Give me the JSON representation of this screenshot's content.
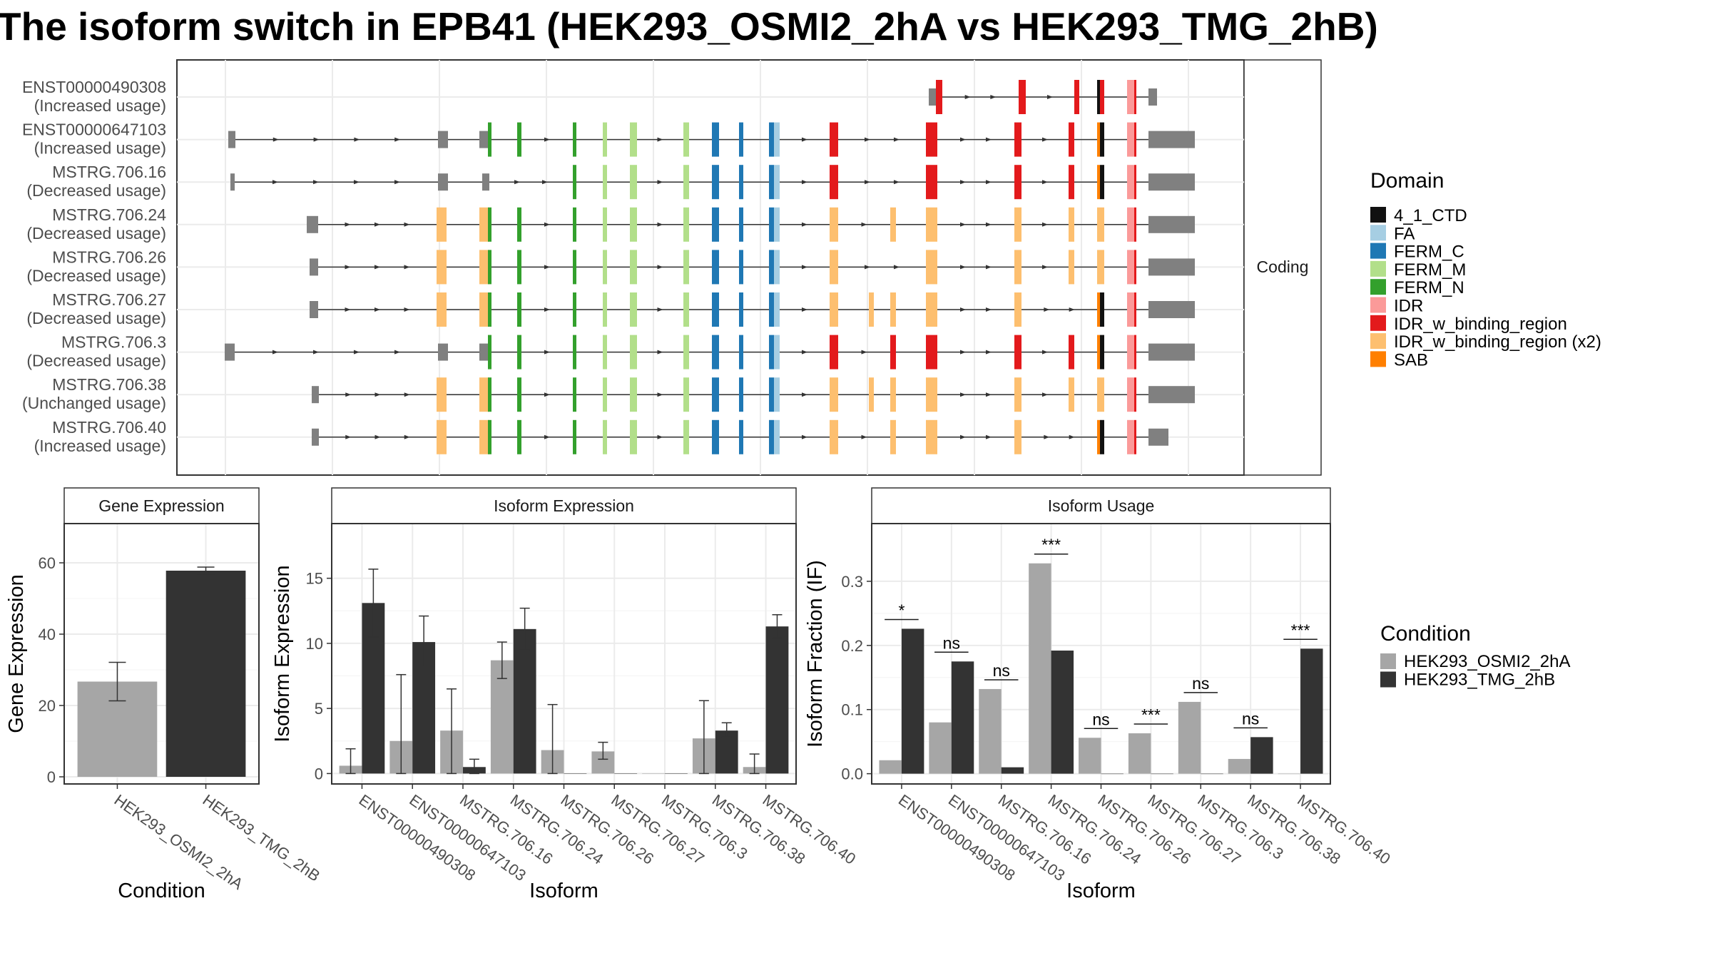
{
  "title": "The isoform switch in EPB41 (HEK293_OSMI2_2hA vs HEK293_TMG_2hB)",
  "colors": {
    "domain": {
      "4_1_CTD": "#111111",
      "FA": "#a6cee3",
      "FERM_C": "#1f78b4",
      "FERM_M": "#b2df8a",
      "FERM_N": "#33a02c",
      "IDR": "#fb9a99",
      "IDR_w_binding_region": "#e31a1c",
      "IDR_w_binding_region (x2)": "#fdbf6f",
      "SAB": "#ff7f00"
    },
    "condition": {
      "HEK293_OSMI2_2hA": "#a6a6a6",
      "HEK293_TMG_2hB": "#333333"
    },
    "exon": "#808080"
  },
  "structure": {
    "strip_label": "Coding",
    "legend_title": "Domain",
    "legend_items": [
      "4_1_CTD",
      "FA",
      "FERM_C",
      "FERM_M",
      "FERM_N",
      "IDR",
      "IDR_w_binding_region",
      "IDR_w_binding_region (x2)",
      "SAB"
    ],
    "transcripts": [
      {
        "id": "ENST00000490308",
        "status": "(Increased usage)",
        "start": 0.0,
        "exons": [
          "utr5a",
          "d24",
          "d25",
          "d26",
          "d27",
          "d28",
          "d29",
          "d30",
          "utr3s"
        ]
      },
      {
        "id": "ENST00000647103",
        "status": "(Increased usage)",
        "start": 0.0,
        "exons": [
          "e0",
          "e2",
          "e3",
          "d1",
          "d2",
          "d3",
          "d4",
          "d5",
          "d6",
          "d7",
          "d8",
          "d9",
          "d10",
          "d12",
          "d15",
          "d17",
          "d18",
          "d19",
          "d20",
          "d21",
          "d22",
          "utr3"
        ]
      },
      {
        "id": "MSTRG.706.16",
        "status": "(Decreased usage)",
        "start": 0.0,
        "exons": [
          "e0b",
          "e2",
          "e3g",
          "d3",
          "d4",
          "d5",
          "d6",
          "d7",
          "d8",
          "d9",
          "d10",
          "d12",
          "d15",
          "d17",
          "d18",
          "d19",
          "d20",
          "d21",
          "d22",
          "utr3"
        ]
      },
      {
        "id": "MSTRG.706.24",
        "status": "(Decreased usage)",
        "start": 1.0,
        "exons": [
          "e1",
          "o2",
          "o3",
          "d1",
          "d2",
          "d3",
          "d4",
          "d5",
          "d6",
          "d7",
          "d8",
          "d9",
          "d10",
          "o12",
          "o14",
          "o15",
          "o17",
          "o18",
          "o20y",
          "d21",
          "d22",
          "utr3"
        ]
      },
      {
        "id": "MSTRG.706.26",
        "status": "(Decreased usage)",
        "start": 1.0,
        "exons": [
          "e1s",
          "o2",
          "o3",
          "d1",
          "d2",
          "d3",
          "d4",
          "d5",
          "d6",
          "d7",
          "d8",
          "d9",
          "d10",
          "o12",
          "o15",
          "o17",
          "o18",
          "o20y",
          "d21",
          "d22",
          "utr3"
        ]
      },
      {
        "id": "MSTRG.706.27",
        "status": "(Decreased usage)",
        "start": 1.0,
        "exons": [
          "e1s",
          "o2",
          "o3",
          "d1",
          "d2",
          "d3",
          "d4",
          "d5",
          "d6",
          "d7",
          "d8",
          "d9",
          "d10",
          "o12",
          "o13",
          "o14",
          "o15",
          "o17",
          "d19",
          "d20",
          "d21",
          "d22",
          "utr3"
        ]
      },
      {
        "id": "MSTRG.706.3",
        "status": "(Decreased usage)",
        "start": 0.0,
        "exons": [
          "e0a",
          "e2",
          "e3",
          "d1",
          "d2",
          "d3",
          "d4",
          "d5",
          "d6",
          "d7",
          "d8",
          "d9",
          "d10",
          "d12",
          "d14",
          "d15",
          "d17",
          "d18",
          "d19",
          "d20",
          "d21",
          "d22",
          "utr3"
        ]
      },
      {
        "id": "MSTRG.706.38",
        "status": "(Unchanged usage)",
        "start": 1.0,
        "exons": [
          "e1t",
          "o2",
          "o3",
          "d1",
          "d2",
          "d3",
          "d4",
          "d5",
          "d6",
          "d7",
          "d8",
          "d9",
          "d10",
          "o12",
          "o13",
          "o14",
          "o15",
          "o17",
          "o18",
          "o20y",
          "d21",
          "d22",
          "utr3"
        ]
      },
      {
        "id": "MSTRG.706.40",
        "status": "(Increased usage)",
        "start": 1.0,
        "exons": [
          "e1t",
          "o2",
          "o3",
          "d1",
          "d2",
          "d3",
          "d4",
          "d5",
          "d6",
          "d7",
          "d8",
          "d9",
          "d10",
          "o12",
          "o14",
          "o15",
          "o17",
          "d19",
          "d20",
          "d21",
          "d22",
          "utr3b"
        ]
      }
    ]
  },
  "chart_data": [
    {
      "type": "bar",
      "title": "Gene Expression",
      "xlabel": "Condition",
      "ylabel": "Gene Expression",
      "categories": [
        "HEK293_OSMI2_2hA",
        "HEK293_TMG_2hB"
      ],
      "values": [
        26.7,
        57.8
      ],
      "error_low": [
        21.3,
        56.8
      ],
      "error_high": [
        32.1,
        58.8
      ],
      "ylim": [
        -2,
        71
      ],
      "yticks": [
        0,
        20,
        40,
        60
      ]
    },
    {
      "type": "bar",
      "title": "Isoform Expression",
      "xlabel": "Isoform",
      "ylabel": "Isoform Expression",
      "categories": [
        "ENST00000490308",
        "ENST00000647103",
        "MSTRG.706.16",
        "MSTRG.706.24",
        "MSTRG.706.26",
        "MSTRG.706.27",
        "MSTRG.706.3",
        "MSTRG.706.38",
        "MSTRG.706.40"
      ],
      "series": [
        {
          "name": "HEK293_OSMI2_2hA",
          "values": [
            0.6,
            2.5,
            3.3,
            8.7,
            1.8,
            1.7,
            0.02,
            2.7,
            0.5
          ],
          "error_low": [
            0.0,
            0.0,
            0.0,
            7.3,
            0.0,
            1.1,
            0.0,
            0.0,
            0.0
          ],
          "error_high": [
            1.9,
            7.6,
            6.5,
            10.1,
            5.3,
            2.4,
            0.05,
            5.6,
            1.5
          ]
        },
        {
          "name": "HEK293_TMG_2hB",
          "values": [
            13.1,
            10.1,
            0.5,
            11.1,
            0.0,
            0.0,
            0.02,
            3.3,
            11.3
          ],
          "error_low": [
            10.5,
            8.2,
            0.0,
            9.5,
            0.0,
            0.0,
            0.0,
            2.8,
            10.4
          ],
          "error_high": [
            15.7,
            12.1,
            1.1,
            12.7,
            0.0,
            0.0,
            0.05,
            3.9,
            12.2
          ]
        }
      ],
      "ylim": [
        -0.8,
        19.2
      ],
      "yticks": [
        0,
        5,
        10,
        15
      ]
    },
    {
      "type": "bar",
      "title": "Isoform Usage",
      "xlabel": "Isoform",
      "ylabel": "Isoform Fraction (IF)",
      "categories": [
        "ENST00000490308",
        "ENST00000647103",
        "MSTRG.706.16",
        "MSTRG.706.24",
        "MSTRG.706.26",
        "MSTRG.706.27",
        "MSTRG.706.3",
        "MSTRG.706.38",
        "MSTRG.706.40"
      ],
      "series": [
        {
          "name": "HEK293_OSMI2_2hA",
          "values": [
            0.021,
            0.08,
            0.132,
            0.328,
            0.056,
            0.063,
            0.112,
            0.023,
            0.0
          ]
        },
        {
          "name": "HEK293_TMG_2hB",
          "values": [
            0.226,
            0.175,
            0.01,
            0.192,
            0.0,
            0.0,
            0.0,
            0.057,
            0.195
          ]
        }
      ],
      "significance": [
        "*",
        "ns",
        "ns",
        "***",
        "ns",
        "***",
        "ns",
        "ns",
        "***"
      ],
      "ylim": [
        -0.016,
        0.39
      ],
      "yticks": [
        0.0,
        0.1,
        0.2,
        0.3
      ],
      "ytick_labels": [
        "0.0",
        "0.1",
        "0.2",
        "0.3"
      ]
    }
  ],
  "condition_legend": {
    "title": "Condition",
    "items": [
      "HEK293_OSMI2_2hA",
      "HEK293_TMG_2hB"
    ]
  }
}
